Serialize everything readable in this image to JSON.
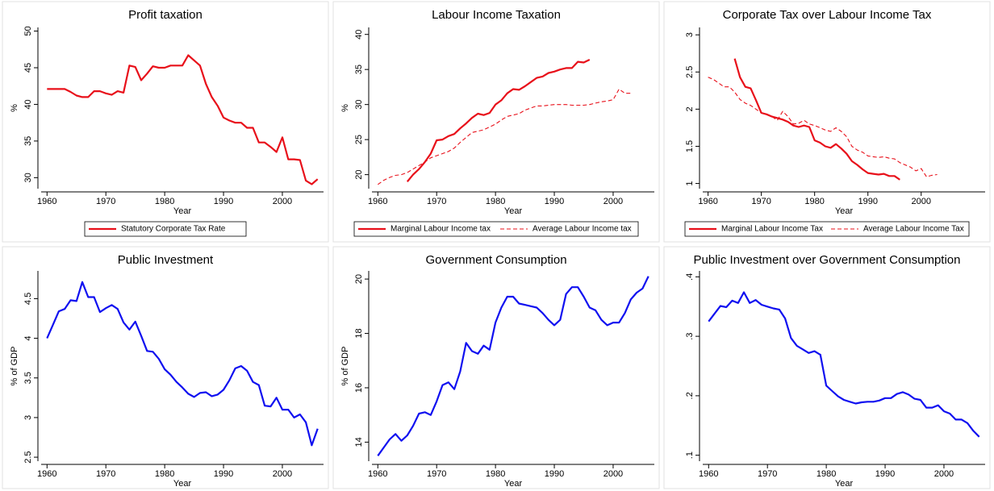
{
  "chart_data": [
    {
      "type": "line",
      "title": "Profit taxation",
      "xlabel": "Year",
      "ylabel": "%",
      "legend": "bottom",
      "x": [
        1960,
        1961,
        1962,
        1963,
        1964,
        1965,
        1966,
        1967,
        1968,
        1969,
        1970,
        1971,
        1972,
        1973,
        1974,
        1975,
        1976,
        1977,
        1978,
        1979,
        1980,
        1981,
        1982,
        1983,
        1984,
        1985,
        1986,
        1987,
        1988,
        1989,
        1990,
        1991,
        1992,
        1993,
        1994,
        1995,
        1996,
        1997,
        1998,
        1999,
        2000,
        2001,
        2002,
        2003,
        2004,
        2005,
        2006
      ],
      "xlim": [
        1959,
        2007
      ],
      "xticks": [
        1960,
        1970,
        1980,
        1990,
        2000
      ],
      "ylim": [
        28.5,
        50.5
      ],
      "yticks": [
        30,
        35,
        40,
        45,
        50
      ],
      "series": [
        {
          "name": "Statutory Corporate Tax Rate",
          "color": "#e8101a",
          "dash": "solid",
          "values": [
            42.1,
            42.1,
            42.1,
            42.1,
            41.7,
            41.2,
            41.0,
            41.0,
            41.8,
            41.8,
            41.5,
            41.3,
            41.8,
            41.6,
            45.3,
            45.1,
            43.3,
            44.2,
            45.2,
            45.0,
            45.0,
            45.3,
            45.3,
            45.3,
            46.7,
            46.0,
            45.3,
            42.8,
            41.0,
            39.8,
            38.2,
            37.8,
            37.5,
            37.5,
            36.8,
            36.8,
            34.8,
            34.8,
            34.2,
            33.5,
            35.5,
            32.5,
            32.5,
            32.4,
            29.6,
            29.1,
            29.8
          ]
        }
      ]
    },
    {
      "type": "line",
      "title": "Labour Income Taxation",
      "xlabel": "Year",
      "ylabel": "%",
      "legend": "bottom",
      "x": [
        1960,
        1961,
        1962,
        1963,
        1964,
        1965,
        1966,
        1967,
        1968,
        1969,
        1970,
        1971,
        1972,
        1973,
        1974,
        1975,
        1976,
        1977,
        1978,
        1979,
        1980,
        1981,
        1982,
        1983,
        1984,
        1985,
        1986,
        1987,
        1988,
        1989,
        1990,
        1991,
        1992,
        1993,
        1994,
        1995,
        1996,
        1997,
        1998,
        1999,
        2000,
        2001,
        2002,
        2003,
        2004,
        2005,
        2006
      ],
      "xlim": [
        1959,
        2007
      ],
      "xticks": [
        1960,
        1970,
        1980,
        1990,
        2000
      ],
      "ylim": [
        18,
        41
      ],
      "yticks": [
        20,
        25,
        30,
        35,
        40
      ],
      "series": [
        {
          "name": "Marginal Labour Income tax",
          "color": "#e8101a",
          "dash": "solid",
          "values": [
            null,
            null,
            null,
            null,
            null,
            19.0,
            20.0,
            20.8,
            21.8,
            23.0,
            24.9,
            25.0,
            25.5,
            25.8,
            26.6,
            27.3,
            28.1,
            28.7,
            28.5,
            28.8,
            30.0,
            30.6,
            31.6,
            32.2,
            32.1,
            32.6,
            33.2,
            33.8,
            34.0,
            34.5,
            34.7,
            35.0,
            35.2,
            35.2,
            36.1,
            36.0,
            36.4,
            null,
            null,
            null,
            null,
            null,
            null,
            null,
            null,
            null,
            null
          ]
        },
        {
          "name": "Average Labour Income tax",
          "color": "#e8101a",
          "dash": "dashed",
          "values": [
            18.6,
            19.2,
            19.6,
            19.9,
            20.0,
            20.3,
            20.8,
            21.3,
            21.8,
            22.4,
            22.7,
            23.0,
            23.3,
            23.8,
            24.6,
            25.3,
            26.0,
            26.2,
            26.4,
            26.8,
            27.2,
            27.8,
            28.3,
            28.5,
            28.7,
            29.2,
            29.5,
            29.8,
            29.8,
            29.9,
            30.0,
            30.0,
            30.0,
            29.9,
            29.9,
            29.9,
            30.0,
            30.2,
            30.4,
            30.5,
            30.7,
            32.2,
            31.6,
            31.6,
            null,
            null,
            null
          ]
        }
      ]
    },
    {
      "type": "line",
      "title": "Corporate Tax over Labour Income Tax",
      "xlabel": "Year",
      "legend": "bottom",
      "x": [
        1960,
        1961,
        1962,
        1963,
        1964,
        1965,
        1966,
        1967,
        1968,
        1969,
        1970,
        1971,
        1972,
        1973,
        1974,
        1975,
        1976,
        1977,
        1978,
        1979,
        1980,
        1981,
        1982,
        1983,
        1984,
        1985,
        1986,
        1987,
        1988,
        1989,
        1990,
        1991,
        1992,
        1993,
        1994,
        1995,
        1996,
        1997,
        1998,
        1999,
        2000,
        2001,
        2002,
        2003,
        2004,
        2005,
        2006
      ],
      "xlim": [
        1959,
        2012
      ],
      "xticks": [
        1960,
        1970,
        1980,
        1990,
        2000
      ],
      "ylim": [
        0.93,
        3.1
      ],
      "yticks": [
        1,
        1.5,
        2,
        2.5,
        3
      ],
      "series": [
        {
          "name": "Marginal Labour Income Tax",
          "color": "#e8101a",
          "dash": "solid",
          "values": [
            null,
            null,
            null,
            null,
            null,
            2.68,
            2.43,
            2.3,
            2.28,
            2.12,
            1.95,
            1.93,
            1.9,
            1.88,
            1.86,
            1.83,
            1.78,
            1.76,
            1.78,
            1.76,
            1.58,
            1.55,
            1.5,
            1.48,
            1.53,
            1.47,
            1.4,
            1.3,
            1.25,
            1.19,
            1.14,
            1.13,
            1.12,
            1.13,
            1.1,
            1.1,
            1.05,
            null,
            null,
            null,
            null,
            null,
            null,
            null,
            null,
            null,
            null
          ]
        },
        {
          "name": "Average Labour Income Tax",
          "color": "#e8101a",
          "dash": "dashed",
          "values": [
            2.43,
            2.4,
            2.35,
            2.3,
            2.3,
            2.23,
            2.13,
            2.08,
            2.05,
            2.0,
            1.95,
            1.93,
            1.9,
            1.85,
            1.97,
            1.9,
            1.8,
            1.81,
            1.85,
            1.8,
            1.78,
            1.75,
            1.72,
            1.7,
            1.75,
            1.7,
            1.63,
            1.5,
            1.45,
            1.42,
            1.37,
            1.36,
            1.35,
            1.36,
            1.34,
            1.33,
            1.28,
            1.25,
            1.22,
            1.17,
            1.2,
            1.09,
            1.11,
            1.12,
            null,
            null,
            null
          ]
        }
      ]
    },
    {
      "type": "line",
      "title": "Public Investment",
      "xlabel": "Year",
      "ylabel": "% of GDP",
      "x": [
        1960,
        1961,
        1962,
        1963,
        1964,
        1965,
        1966,
        1967,
        1968,
        1969,
        1970,
        1971,
        1972,
        1973,
        1974,
        1975,
        1976,
        1977,
        1978,
        1979,
        1980,
        1981,
        1982,
        1983,
        1984,
        1985,
        1986,
        1987,
        1988,
        1989,
        1990,
        1991,
        1992,
        1993,
        1994,
        1995,
        1996,
        1997,
        1998,
        1999,
        2000,
        2001,
        2002,
        2003,
        2004,
        2005,
        2006
      ],
      "xlim": [
        1959,
        2007
      ],
      "xticks": [
        1960,
        1970,
        1980,
        1990,
        2000
      ],
      "ylim": [
        2.45,
        4.85
      ],
      "yticks": [
        2.5,
        3,
        3.5,
        4,
        4.5
      ],
      "series": [
        {
          "color": "#1010f0",
          "dash": "solid",
          "values": [
            4.0,
            4.17,
            4.34,
            4.37,
            4.48,
            4.47,
            4.71,
            4.52,
            4.52,
            4.33,
            4.38,
            4.42,
            4.37,
            4.2,
            4.11,
            4.21,
            4.03,
            3.84,
            3.83,
            3.74,
            3.61,
            3.54,
            3.45,
            3.38,
            3.3,
            3.26,
            3.31,
            3.32,
            3.27,
            3.29,
            3.35,
            3.47,
            3.62,
            3.65,
            3.59,
            3.45,
            3.41,
            3.15,
            3.14,
            3.25,
            3.1,
            3.1,
            3.0,
            3.04,
            2.94,
            2.65,
            2.86
          ]
        }
      ]
    },
    {
      "type": "line",
      "title": "Government Consumption",
      "xlabel": "Year",
      "ylabel": "% of GDP",
      "x": [
        1960,
        1961,
        1962,
        1963,
        1964,
        1965,
        1966,
        1967,
        1968,
        1969,
        1970,
        1971,
        1972,
        1973,
        1974,
        1975,
        1976,
        1977,
        1978,
        1979,
        1980,
        1981,
        1982,
        1983,
        1984,
        1985,
        1986,
        1987,
        1988,
        1989,
        1990,
        1991,
        1992,
        1993,
        1994,
        1995,
        1996,
        1997,
        1998,
        1999,
        2000,
        2001,
        2002,
        2003,
        2004,
        2005,
        2006
      ],
      "xlim": [
        1959,
        2007
      ],
      "xticks": [
        1960,
        1970,
        1980,
        1990,
        2000
      ],
      "ylim": [
        13.3,
        20.3
      ],
      "yticks": [
        14,
        16,
        18,
        20
      ],
      "series": [
        {
          "color": "#1010f0",
          "dash": "solid",
          "values": [
            13.5,
            13.8,
            14.1,
            14.3,
            14.05,
            14.25,
            14.6,
            15.05,
            15.1,
            15.0,
            15.5,
            16.1,
            16.2,
            15.95,
            16.6,
            17.65,
            17.35,
            17.25,
            17.55,
            17.4,
            18.4,
            18.95,
            19.35,
            19.35,
            19.1,
            19.05,
            19.0,
            18.95,
            18.75,
            18.5,
            18.3,
            18.5,
            19.45,
            19.7,
            19.7,
            19.35,
            18.95,
            18.85,
            18.5,
            18.3,
            18.4,
            18.4,
            18.75,
            19.25,
            19.5,
            19.65,
            20.1
          ]
        }
      ]
    },
    {
      "type": "line",
      "title": "Public Investment over Government Consumption",
      "xlabel": "Year",
      "x": [
        1960,
        1961,
        1962,
        1963,
        1964,
        1965,
        1966,
        1967,
        1968,
        1969,
        1970,
        1971,
        1972,
        1973,
        1974,
        1975,
        1976,
        1977,
        1978,
        1979,
        1980,
        1981,
        1982,
        1983,
        1984,
        1985,
        1986,
        1987,
        1988,
        1989,
        1990,
        1991,
        1992,
        1993,
        1994,
        1995,
        1996,
        1997,
        1998,
        1999,
        2000,
        2001,
        2002,
        2003,
        2004,
        2005,
        2006
      ],
      "xlim": [
        1959,
        2007
      ],
      "xticks": [
        1960,
        1970,
        1980,
        1990,
        2000
      ],
      "ylim": [
        0.09,
        0.41
      ],
      "yticks": [
        {
          "value": 0.1,
          "label": ".1"
        },
        {
          "value": 0.2,
          "label": ".2"
        },
        {
          "value": 0.3,
          "label": ".3"
        },
        {
          "value": 0.4,
          "label": ".4"
        }
      ],
      "series": [
        {
          "color": "#1010f0",
          "dash": "solid",
          "values": [
            0.325,
            0.338,
            0.351,
            0.349,
            0.36,
            0.356,
            0.374,
            0.356,
            0.361,
            0.353,
            0.35,
            0.347,
            0.345,
            0.33,
            0.297,
            0.284,
            0.278,
            0.272,
            0.275,
            0.269,
            0.217,
            0.208,
            0.199,
            0.193,
            0.19,
            0.187,
            0.189,
            0.19,
            0.19,
            0.192,
            0.196,
            0.196,
            0.203,
            0.206,
            0.202,
            0.195,
            0.193,
            0.18,
            0.18,
            0.184,
            0.174,
            0.17,
            0.16,
            0.16,
            0.154,
            0.141,
            0.131
          ]
        }
      ]
    }
  ]
}
